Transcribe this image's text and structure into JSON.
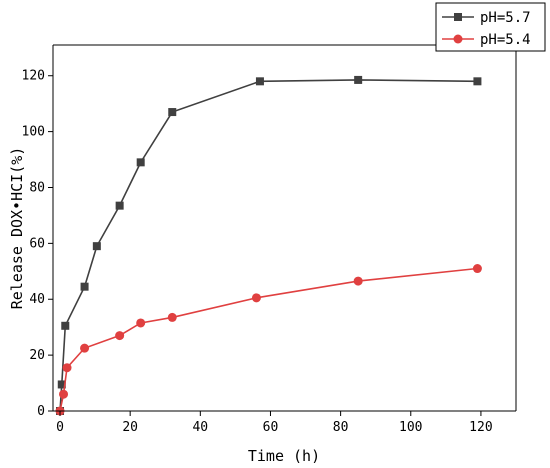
{
  "chart_data": {
    "type": "line",
    "xlabel": "Time (h)",
    "ylabel": "Release DOX•HCI(%)",
    "xlim": [
      -2,
      130
    ],
    "ylim": [
      0,
      131
    ],
    "x_ticks": [
      0,
      20,
      40,
      60,
      80,
      100,
      120
    ],
    "y_ticks": [
      0,
      20,
      40,
      60,
      80,
      100,
      120
    ],
    "legend_position": "top-right",
    "grid": false,
    "series": [
      {
        "name": "pH=5.7",
        "color": "#404040",
        "marker": "square",
        "x": [
          0,
          0.5,
          1.5,
          7,
          10.5,
          17,
          23,
          32,
          57,
          85,
          119
        ],
        "y": [
          0,
          9.5,
          30.5,
          44.5,
          59,
          73.5,
          89,
          107,
          118,
          118.5,
          118
        ]
      },
      {
        "name": "pH=5.4",
        "color": "#e04040",
        "marker": "circle",
        "x": [
          0,
          1,
          2,
          7,
          17,
          23,
          32,
          56,
          85,
          119
        ],
        "y": [
          0,
          6,
          15.5,
          22.5,
          27,
          31.5,
          33.5,
          40.5,
          46.5,
          51
        ]
      }
    ]
  }
}
